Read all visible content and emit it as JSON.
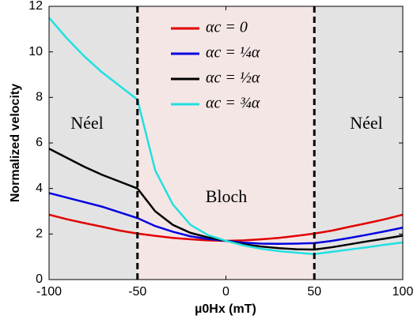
{
  "chart_data": {
    "type": "line",
    "xlabel": "µ0Hx (mT)",
    "ylabel": "Normalized velocity",
    "x": [
      -100,
      -90,
      -80,
      -70,
      -60,
      -50,
      -40,
      -30,
      -20,
      -10,
      0,
      10,
      20,
      30,
      40,
      50,
      60,
      70,
      80,
      90,
      100
    ],
    "series": [
      {
        "name": "αc = 0",
        "color": "#e00000",
        "values": [
          2.85,
          2.65,
          2.48,
          2.32,
          2.15,
          2.02,
          1.92,
          1.83,
          1.77,
          1.72,
          1.7,
          1.72,
          1.77,
          1.83,
          1.92,
          2.02,
          2.15,
          2.32,
          2.48,
          2.65,
          2.85
        ]
      },
      {
        "name": "αc = ¼α",
        "color": "#0000e0",
        "values": [
          3.8,
          3.6,
          3.4,
          3.2,
          2.95,
          2.7,
          2.35,
          2.1,
          1.9,
          1.78,
          1.7,
          1.62,
          1.58,
          1.57,
          1.58,
          1.6,
          1.7,
          1.83,
          1.97,
          2.12,
          2.28
        ]
      },
      {
        "name": "αc = ½α",
        "color": "#000000",
        "values": [
          5.75,
          5.35,
          4.95,
          4.6,
          4.3,
          4.0,
          3.0,
          2.4,
          2.05,
          1.85,
          1.7,
          1.55,
          1.45,
          1.38,
          1.33,
          1.32,
          1.42,
          1.55,
          1.68,
          1.8,
          1.93
        ]
      },
      {
        "name": "αc = ¾α",
        "color": "#20e0e0",
        "values": [
          11.5,
          10.6,
          9.8,
          9.1,
          8.5,
          7.9,
          4.8,
          3.3,
          2.4,
          1.95,
          1.7,
          1.5,
          1.35,
          1.25,
          1.18,
          1.12,
          1.22,
          1.32,
          1.42,
          1.53,
          1.63
        ]
      }
    ],
    "boundaries": [
      -50,
      50
    ],
    "annotations": [
      "Néel",
      "Bloch",
      "Néel"
    ],
    "xlim": [
      -100,
      100
    ],
    "xticks": [
      -100,
      -50,
      0,
      50,
      100
    ],
    "ylim": [
      0,
      12
    ],
    "yticks": [
      0,
      2,
      4,
      6,
      8,
      10,
      12
    ]
  }
}
